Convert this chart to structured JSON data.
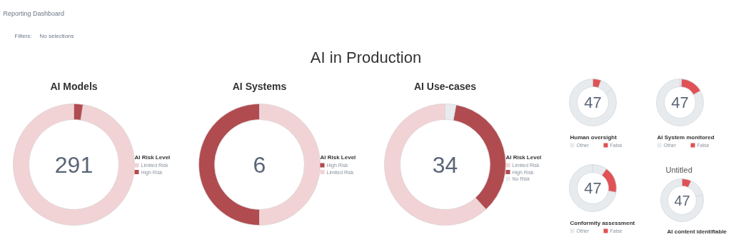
{
  "chart_data": [
    {
      "type": "other",
      "title": "AI in Production",
      "annotations": [
        "Reporting Dashboard",
        "Filters:",
        "No selections"
      ]
    },
    {
      "type": "donut",
      "title": "AI Models",
      "legend_title": "AI Risk Level",
      "legend": "right",
      "categories": [
        "Limited Risk",
        "High Risk"
      ],
      "values": [
        97.6,
        2.4
      ],
      "colors": [
        "#f2d3d5",
        "#b04b50"
      ],
      "annotations": [
        "291"
      ]
    },
    {
      "type": "donut",
      "title": "AI Systems",
      "legend_title": "AI Risk Level",
      "legend": "right",
      "categories": [
        "High Risk",
        "Limited Risk"
      ],
      "values": [
        50,
        50
      ],
      "colors": [
        "#b04b50",
        "#f2d3d5"
      ],
      "annotations": [
        "6"
      ]
    },
    {
      "type": "donut",
      "title": "AI Use-cases",
      "legend_title": "AI Risk Level",
      "legend": "right",
      "categories": [
        "Limited Risk",
        "High Risk",
        "No Risk"
      ],
      "values": [
        61.8,
        35.3,
        2.9
      ],
      "colors": [
        "#f2d3d5",
        "#b04b50",
        "#e8ebee"
      ],
      "annotations": [
        "34"
      ]
    },
    {
      "type": "donut",
      "legend_title": "Human oversight",
      "legend": "bottom",
      "categories": [
        "Other",
        null,
        "False"
      ],
      "values": [
        84.7,
        9.7,
        5.6
      ],
      "colors": [
        "#e8ebee",
        "#e8ebee",
        "#e05255"
      ],
      "annotations": [
        "47"
      ]
    },
    {
      "type": "donut",
      "legend_title": "AI System monitored",
      "legend": "bottom",
      "categories": [
        "Other",
        "False",
        null
      ],
      "values": [
        83.3,
        15.6,
        1.1
      ],
      "colors": [
        "#e8ebee",
        "#e05255",
        "#e8ebee"
      ],
      "annotations": [
        "47"
      ]
    },
    {
      "type": "donut",
      "legend_title": "Conformity assessment",
      "legend": "bottom",
      "categories": [
        "Other",
        "False",
        null
      ],
      "values": [
        72.2,
        18.1,
        9.7
      ],
      "colors": [
        "#e8ebee",
        "#e05255",
        "#e8ebee"
      ],
      "annotations": [
        "47"
      ]
    },
    {
      "type": "donut",
      "title": "Untitled",
      "legend_title": "AI content identifiable",
      "categories": [
        null,
        null,
        null
      ],
      "values": [
        79.2,
        13.9,
        6.9
      ],
      "colors": [
        "#e8ebee",
        "#e8ebee",
        "#e05255"
      ],
      "annotations": [
        "47"
      ]
    }
  ]
}
